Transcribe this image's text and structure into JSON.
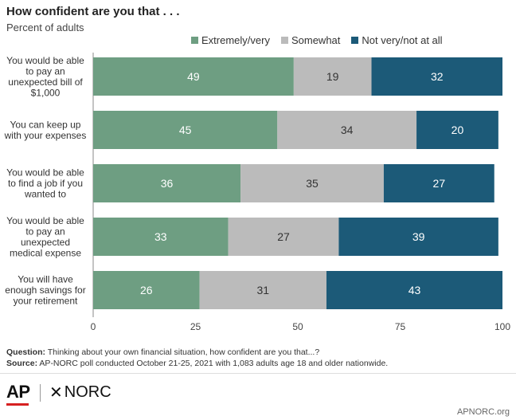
{
  "title": "How confident are you that . . .",
  "subtitle": "Percent of adults",
  "legend": [
    {
      "label": "Extremely/very",
      "color": "#6e9e82"
    },
    {
      "label": "Somewhat",
      "color": "#bbbbbb"
    },
    {
      "label": "Not very/not at all",
      "color": "#1c5a78"
    }
  ],
  "chart_data": {
    "type": "bar",
    "orientation": "horizontal",
    "stacked": true,
    "categories": [
      [
        "You would be able",
        "to pay an",
        "unexpected bill of",
        "$1,000"
      ],
      [
        "You can keep up",
        "with your expenses"
      ],
      [
        "You would be able",
        "to find a job if you",
        "wanted to"
      ],
      [
        "You would be able",
        "to pay an",
        "unexpected",
        "medical expense"
      ],
      [
        "You will have",
        "enough savings for",
        "your retirement"
      ]
    ],
    "series": [
      {
        "name": "Extremely/very",
        "color": "#6e9e82",
        "values": [
          49,
          45,
          36,
          33,
          26
        ]
      },
      {
        "name": "Somewhat",
        "color": "#bbbbbb",
        "values": [
          19,
          34,
          35,
          27,
          31
        ]
      },
      {
        "name": "Not very/not at all",
        "color": "#1c5a78",
        "values": [
          32,
          20,
          27,
          39,
          43
        ]
      }
    ],
    "xlim": [
      0,
      100
    ],
    "xticks": [
      0,
      25,
      50,
      75,
      100
    ],
    "legend_position": "top-right",
    "grid": false
  },
  "footer": {
    "question_label": "Question:",
    "question_text": " Thinking about your own financial situation, how confident are you that...?",
    "source_label": "Source:",
    "source_text": " AP-NORC poll conducted October 21-25, 2021 with 1,083 adults age 18 and older nationwide."
  },
  "logos": {
    "ap": "AP",
    "norc": "NORC"
  },
  "credit": "APNORC.org"
}
